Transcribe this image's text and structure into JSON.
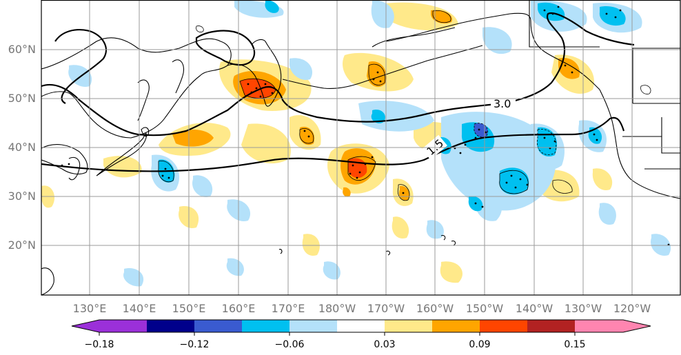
{
  "map": {
    "longitude_ticks": [
      "130°E",
      "140°E",
      "150°E",
      "160°E",
      "170°E",
      "180°W",
      "170°W",
      "160°W",
      "150°W",
      "140°W",
      "130°W",
      "120°W"
    ],
    "latitude_ticks": [
      "60°N",
      "50°N",
      "40°N",
      "30°N",
      "20°N"
    ],
    "contour_labels": [
      "3.0",
      "1.5"
    ],
    "colors": {
      "land_outline": "#000000",
      "grid": "#9a9a9a",
      "frame": "#000000"
    },
    "shading_levels": [
      {
        "range": "< -0.18",
        "color": "#9b30d9"
      },
      {
        "range": "-0.18 to -0.15",
        "color": "#00008b"
      },
      {
        "range": "-0.15 to -0.12",
        "color": "#3a5bd0"
      },
      {
        "range": "-0.12 to -0.09",
        "color": "#00aaee"
      },
      {
        "range": "-0.09 to -0.06",
        "color": "#00c0f0"
      },
      {
        "range": "-0.06 to -0.03",
        "color": "#b4e1fa"
      },
      {
        "range": "-0.03 to 0.03",
        "color": "#ffffff"
      },
      {
        "range": "0.03 to 0.06",
        "color": "#ffe98a"
      },
      {
        "range": "0.06 to 0.09",
        "color": "#ffa500"
      },
      {
        "range": "0.09 to 0.12",
        "color": "#ff4500"
      },
      {
        "range": "0.12 to 0.15",
        "color": "#b22222"
      },
      {
        "range": "> 0.15",
        "color": "#ff85b0"
      }
    ]
  },
  "colorbar": {
    "tick_labels": [
      "−0.18",
      "−0.12",
      "−0.06",
      "0.03",
      "0.09",
      "0.15"
    ]
  }
}
